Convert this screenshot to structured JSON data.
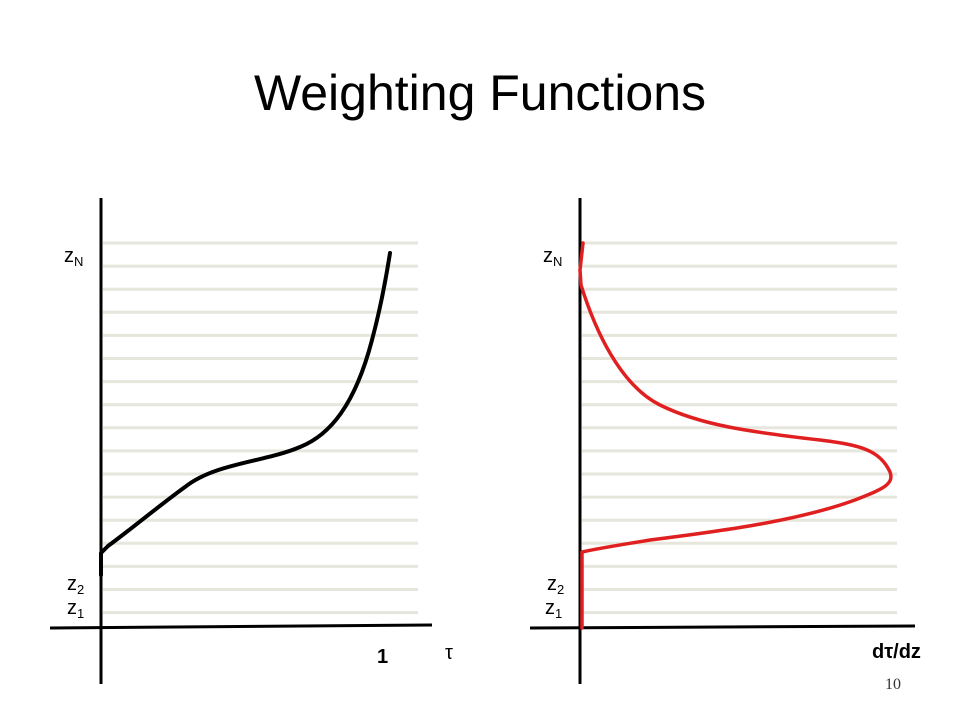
{
  "slide": {
    "title": "Weighting Functions",
    "page_number": "10"
  },
  "left_panel": {
    "top_level_label": "z",
    "top_level_sub": "N",
    "level2_label": "z",
    "level2_sub": "2",
    "level1_label": "z",
    "level1_sub": "1",
    "x_tick_label": "1",
    "x_axis_label": "τ",
    "curve_color": "#000000"
  },
  "right_panel": {
    "top_level_label": "z",
    "top_level_sub": "N",
    "level2_label": "z",
    "level2_sub": "2",
    "level1_label": "z",
    "level1_sub": "1",
    "x_axis_label": "dτ/dz",
    "curve_color": "#e02020"
  },
  "colors": {
    "layer_lines": "#e6e6dc",
    "axes": "#000000"
  }
}
